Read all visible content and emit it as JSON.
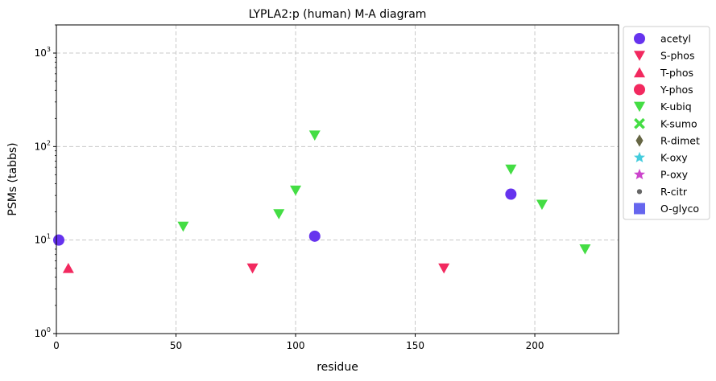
{
  "chart_data": {
    "type": "scatter",
    "title": "LYPLA2:p (human) M-A diagram",
    "xlabel": "residue",
    "ylabel": "PSMs (tabbs)",
    "xlim": [
      0,
      235
    ],
    "ylim": [
      1,
      2000
    ],
    "yscale": "log",
    "xticks": [
      0,
      50,
      100,
      150,
      200
    ],
    "yticks": [
      1,
      10,
      100,
      1000
    ],
    "grid": true,
    "legend_position": "outside-right",
    "series": [
      {
        "name": "acetyl",
        "marker": "circle",
        "color": "#6633ee",
        "points": [
          [
            1,
            10
          ],
          [
            108,
            11
          ],
          [
            190,
            31
          ]
        ]
      },
      {
        "name": "S-phos",
        "marker": "triangle-down",
        "color": "#f2295f",
        "points": [
          [
            82,
            5
          ],
          [
            162,
            5
          ]
        ]
      },
      {
        "name": "T-phos",
        "marker": "triangle-up",
        "color": "#f2295f",
        "points": [
          [
            5,
            5
          ]
        ]
      },
      {
        "name": "Y-phos",
        "marker": "circle",
        "color": "#f2295f",
        "points": []
      },
      {
        "name": "K-ubiq",
        "marker": "triangle-down",
        "color": "#44dd44",
        "points": [
          [
            53,
            14
          ],
          [
            93,
            19
          ],
          [
            100,
            34
          ],
          [
            108,
            132
          ],
          [
            190,
            57
          ],
          [
            203,
            24
          ],
          [
            221,
            8
          ]
        ]
      },
      {
        "name": "K-sumo",
        "marker": "x",
        "color": "#44dd44",
        "points": []
      },
      {
        "name": "R-dimet",
        "marker": "diamond",
        "color": "#666644",
        "points": []
      },
      {
        "name": "K-oxy",
        "marker": "star",
        "color": "#44ccdd",
        "points": []
      },
      {
        "name": "P-oxy",
        "marker": "star",
        "color": "#cc44cc",
        "points": []
      },
      {
        "name": "R-citr",
        "marker": "dot",
        "color": "#666666",
        "points": []
      },
      {
        "name": "O-glyco",
        "marker": "square",
        "color": "#6666ee",
        "points": []
      }
    ]
  }
}
